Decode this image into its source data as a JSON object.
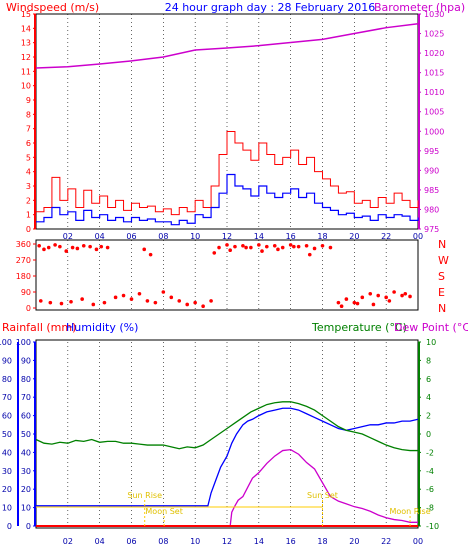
{
  "header": {
    "windspeed_label": "Windspeed (m/s)",
    "title": "24 hour graph day : 28 February 2016",
    "barometer_label": "Barometer (hpa)"
  },
  "labels": {
    "rainfall": "Rainfall (mm)",
    "humidity": "Humidity (%)",
    "temperature": "Temperature (°C)",
    "dew_point": "Dew Point (°C)",
    "moon_rise": "Moon Rise",
    "moon_set": "Moon Set",
    "sun_rise": "Sun Rise",
    "sun_set": "Sun Set"
  },
  "colors": {
    "wind": "#ff0000",
    "gust_bar": "#0000ff",
    "barometer": "#cc00cc",
    "direction": "#ff0000",
    "rainfall": "#ff0000",
    "humidity": "#0000ff",
    "temperature": "#008000",
    "dew_point": "#cc00cc",
    "sun_marker": "#ffcc00",
    "grid": "#000000"
  },
  "chart_data": [
    {
      "type": "line",
      "id": "wind-baro",
      "x_ticks": [
        "02",
        "04",
        "06",
        "08",
        "10",
        "12",
        "14",
        "16",
        "18",
        "20",
        "22",
        "00"
      ],
      "y_left": {
        "label": "Windspeed (m/s)",
        "range": [
          0,
          15
        ],
        "ticks": [
          0,
          1,
          2,
          3,
          4,
          5,
          6,
          7,
          8,
          9,
          10,
          11,
          12,
          13,
          14,
          15
        ]
      },
      "y_right": {
        "label": "Barometer (hpa)",
        "range": [
          975,
          1030
        ],
        "ticks": [
          975,
          980,
          985,
          990,
          995,
          1000,
          1005,
          1010,
          1015,
          1020,
          1025,
          1030
        ]
      },
      "series": [
        {
          "role": "windspeed-max",
          "axis": "left",
          "x": [
            0,
            0.5,
            1,
            1.5,
            2,
            2.5,
            3,
            3.5,
            4,
            4.5,
            5,
            5.5,
            6,
            6.5,
            7,
            7.5,
            8,
            8.5,
            9,
            9.5,
            10,
            10.5,
            11,
            11.5,
            12,
            12.5,
            13,
            13.5,
            14,
            14.5,
            15,
            15.5,
            16,
            16.5,
            17,
            17.5,
            18,
            18.5,
            19,
            19.5,
            20,
            20.5,
            21,
            21.5,
            22,
            22.5,
            23,
            23.5,
            24
          ],
          "values": [
            1.2,
            1.5,
            3.6,
            2,
            2.8,
            1.5,
            2.7,
            1.8,
            2.3,
            1.5,
            2,
            1.3,
            1.8,
            1.5,
            1.6,
            1.2,
            1.4,
            1,
            1.5,
            1.2,
            2,
            1.5,
            3,
            5.2,
            6.8,
            6,
            5.5,
            4.8,
            6,
            5.2,
            4.5,
            5,
            5.5,
            4.5,
            5,
            4,
            3.5,
            3,
            2.5,
            2.6,
            1.8,
            2,
            1.5,
            2.2,
            1.8,
            2.5,
            2,
            1.5,
            2
          ]
        },
        {
          "role": "windspeed-avg",
          "axis": "left",
          "x": [
            0,
            0.5,
            1,
            1.5,
            2,
            2.5,
            3,
            3.5,
            4,
            4.5,
            5,
            5.5,
            6,
            6.5,
            7,
            7.5,
            8,
            8.5,
            9,
            9.5,
            10,
            10.5,
            11,
            11.5,
            12,
            12.5,
            13,
            13.5,
            14,
            14.5,
            15,
            15.5,
            16,
            16.5,
            17,
            17.5,
            18,
            18.5,
            19,
            19.5,
            20,
            20.5,
            21,
            21.5,
            22,
            22.5,
            23,
            23.5,
            24
          ],
          "values": [
            0.5,
            0.8,
            1.5,
            1,
            1.2,
            0.6,
            1.3,
            0.8,
            1,
            0.6,
            0.8,
            0.5,
            0.8,
            0.6,
            0.7,
            0.5,
            0.5,
            0.3,
            0.6,
            0.4,
            1,
            0.8,
            1.5,
            2.5,
            3.8,
            3,
            2.8,
            2.3,
            3,
            2.5,
            2.2,
            2.5,
            2.8,
            2.2,
            2.5,
            1.8,
            1.5,
            1.3,
            1,
            1.1,
            0.8,
            0.9,
            0.6,
            1,
            0.8,
            1,
            0.9,
            0.6,
            0.8
          ]
        },
        {
          "role": "barometer",
          "axis": "right",
          "x": [
            0,
            2,
            4,
            6,
            8,
            10,
            12,
            14,
            16,
            18,
            20,
            22,
            24
          ],
          "values": [
            1016.2,
            1016.5,
            1017.2,
            1018.0,
            1019.0,
            1020.8,
            1021.3,
            1021.9,
            1022.7,
            1023.5,
            1025.0,
            1026.5,
            1027.5
          ]
        }
      ]
    },
    {
      "type": "scatter",
      "id": "wind-direction",
      "y_ticks": [
        0,
        90,
        180,
        270,
        360
      ],
      "compass": [
        "N",
        "W",
        "S",
        "E",
        "N"
      ],
      "points_x": [
        0.2,
        0.5,
        0.8,
        1.2,
        1.5,
        1.9,
        2.3,
        2.6,
        3.0,
        3.4,
        3.8,
        4.1,
        4.5,
        0.3,
        0.9,
        1.6,
        2.2,
        2.9,
        3.6,
        4.3,
        5.0,
        5.5,
        6.0,
        6.5,
        7.0,
        7.5,
        6.8,
        7.2,
        8.0,
        8.5,
        9.0,
        9.5,
        10.0,
        10.5,
        11.0,
        11.5,
        12.0,
        12.5,
        13.0,
        13.5,
        14.0,
        14.5,
        15.0,
        15.5,
        16.0,
        16.5,
        17.0,
        17.5,
        18.0,
        11.2,
        12.2,
        13.2,
        14.2,
        15.2,
        16.2,
        17.2,
        18.5,
        19.0,
        19.5,
        20.0,
        20.5,
        21.0,
        21.5,
        22.0,
        22.5,
        23.0,
        23.5,
        19.2,
        20.2,
        21.2,
        22.2,
        23.2
      ],
      "points_dir": [
        350,
        330,
        340,
        355,
        345,
        320,
        340,
        335,
        350,
        345,
        330,
        345,
        340,
        40,
        30,
        25,
        35,
        50,
        20,
        30,
        60,
        70,
        50,
        80,
        40,
        30,
        330,
        300,
        90,
        60,
        40,
        20,
        30,
        10,
        40,
        340,
        355,
        345,
        350,
        340,
        355,
        345,
        350,
        340,
        355,
        345,
        350,
        335,
        350,
        310,
        325,
        340,
        320,
        330,
        345,
        300,
        340,
        30,
        50,
        30,
        60,
        80,
        70,
        60,
        90,
        70,
        65,
        10,
        25,
        20,
        40,
        80
      ]
    },
    {
      "type": "line",
      "id": "rain-humidity-temperature",
      "x_ticks": [
        "02",
        "04",
        "06",
        "08",
        "10",
        "12",
        "14",
        "16",
        "18",
        "20",
        "22",
        "00"
      ],
      "y_left": {
        "label": "Humidity (%)",
        "range": [
          0,
          100
        ],
        "ticks": [
          0,
          10,
          20,
          30,
          40,
          50,
          60,
          70,
          80,
          90,
          100
        ]
      },
      "y_right": {
        "label": "Temperature (°C)",
        "range": [
          -10,
          10
        ],
        "ticks": [
          -10,
          -8,
          -6,
          -4,
          -2,
          0,
          2,
          4,
          6,
          8,
          10
        ]
      },
      "series": [
        {
          "role": "humidity",
          "axis": "left",
          "x": [
            0,
            10.8,
            11,
            11.3,
            11.6,
            12,
            12.3,
            12.6,
            13,
            13.3,
            13.6,
            14,
            14.5,
            15,
            15.5,
            16,
            16.5,
            17,
            17.5,
            18,
            18.5,
            19,
            19.5,
            20,
            20.5,
            21,
            21.5,
            22,
            22.5,
            23,
            23.5,
            24
          ],
          "values": [
            11,
            11,
            18,
            25,
            32,
            38,
            45,
            50,
            55,
            57,
            58,
            60,
            62,
            63,
            64,
            64,
            63,
            61,
            59,
            57,
            55,
            53,
            52,
            53,
            54,
            55,
            55,
            56,
            56,
            57,
            57,
            58
          ]
        },
        {
          "role": "temperature",
          "axis": "right",
          "x": [
            0,
            0.5,
            1,
            1.5,
            2,
            2.5,
            3,
            3.5,
            4,
            4.5,
            5,
            5.5,
            6,
            6.5,
            7,
            7.5,
            8,
            8.5,
            9,
            9.5,
            10,
            10.5,
            11,
            11.5,
            12,
            12.5,
            13,
            13.5,
            14,
            14.5,
            15,
            15.5,
            16,
            16.5,
            17,
            17.5,
            18,
            18.5,
            19,
            19.5,
            20,
            20.5,
            21,
            21.5,
            22,
            22.5,
            23,
            23.5,
            24
          ],
          "values": [
            -0.6,
            -1,
            -1.1,
            -0.9,
            -1,
            -0.7,
            -0.8,
            -0.6,
            -0.9,
            -0.8,
            -0.8,
            -1,
            -1,
            -1.1,
            -1.2,
            -1.2,
            -1.2,
            -1.4,
            -1.6,
            -1.4,
            -1.5,
            -1.2,
            -0.6,
            0,
            0.6,
            1.2,
            1.8,
            2.4,
            2.8,
            3.2,
            3.4,
            3.5,
            3.5,
            3.3,
            3,
            2.6,
            2,
            1.4,
            0.8,
            0.4,
            0.2,
            0,
            -0.4,
            -0.8,
            -1.2,
            -1.5,
            -1.7,
            -1.8,
            -1.8
          ]
        },
        {
          "role": "dew-point",
          "axis": "right",
          "x": [
            12.2,
            12.3,
            12.5,
            12.7,
            13,
            13.3,
            13.6,
            14,
            14.5,
            15,
            15.5,
            16,
            16.5,
            17,
            17.5,
            18,
            18.5,
            19,
            19.5,
            20,
            20.5,
            21,
            21.5,
            22,
            22.5,
            23,
            23.5,
            24
          ],
          "values": [
            -10,
            -8.5,
            -7.8,
            -7.2,
            -6.8,
            -5.8,
            -4.8,
            -4.2,
            -3.2,
            -2.4,
            -1.8,
            -1.7,
            -2.2,
            -3.1,
            -3.8,
            -5.3,
            -6.8,
            -7.3,
            -7.6,
            -7.9,
            -8.1,
            -8.4,
            -8.8,
            -9.1,
            -9.3,
            -9.4,
            -9.6,
            -9.6
          ]
        },
        {
          "role": "rainfall",
          "axis": "left",
          "x": [
            0,
            24
          ],
          "values": [
            0,
            0
          ]
        }
      ],
      "events": [
        {
          "label": "moon_rise",
          "time": 23.5,
          "level": 1
        },
        {
          "label": "sun_rise",
          "time": 6.83,
          "level": 2
        },
        {
          "label": "moon_set",
          "time": 8.05,
          "level": 1
        },
        {
          "label": "sun_set",
          "time": 18.0,
          "level": 2
        }
      ],
      "moon_phase_ticks": [
        "Moon Rise",
        "02",
        "04",
        "06",
        "Sun Rise",
        "10",
        "12",
        "14",
        "16",
        "18",
        "20",
        "22",
        "00"
      ]
    }
  ]
}
